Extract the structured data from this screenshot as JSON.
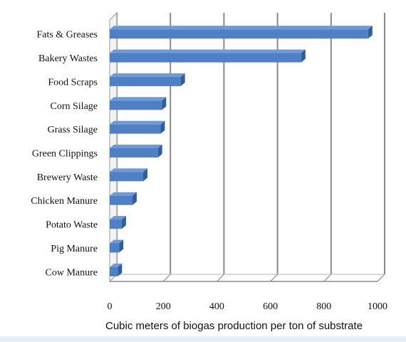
{
  "chart_data": {
    "type": "bar",
    "orientation": "horizontal",
    "categories": [
      "Fats & Greases",
      "Bakery Wastes",
      "Food Scraps",
      "Corn Silage",
      "Grass Silage",
      "Green Clippings",
      "Brewery Waste",
      "Chicken Manure",
      "Potato Waste",
      "Pig Manure",
      "Cow Manure"
    ],
    "values": [
      965,
      715,
      265,
      195,
      190,
      180,
      125,
      85,
      45,
      35,
      30
    ],
    "title": "",
    "xlabel": "Cubic meters of biogas production per ton of substrate",
    "ylabel": "",
    "xlim": [
      0,
      1000
    ],
    "xticks": [
      0,
      200,
      400,
      600,
      800,
      1000
    ],
    "grid": "vertical",
    "legend": "none",
    "bar_color": "#4f7fc5",
    "bar_top_color": "#6f9ad6",
    "bar_side_color": "#2f5d9e",
    "grid_color": "#8a8a8a"
  }
}
